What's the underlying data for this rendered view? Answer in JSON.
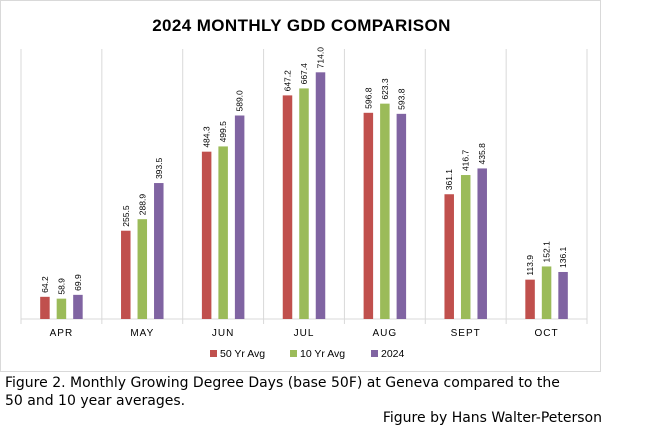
{
  "chart_data": {
    "type": "bar",
    "title": "2024 MONTHLY GDD COMPARISON",
    "categories": [
      "APR",
      "MAY",
      "JUN",
      "JUL",
      "AUG",
      "SEPT",
      "OCT"
    ],
    "series": [
      {
        "name": "50 Yr Avg",
        "color": "#c0504d",
        "values": [
          64.2,
          255.5,
          484.3,
          647.2,
          596.8,
          361.1,
          113.9
        ]
      },
      {
        "name": "10 Yr Avg",
        "color": "#9bbb59",
        "values": [
          58.9,
          288.9,
          499.5,
          667.4,
          623.3,
          416.7,
          152.1
        ]
      },
      {
        "name": "2024",
        "color": "#8064a2",
        "values": [
          69.9,
          393.5,
          589.0,
          714.0,
          593.8,
          435.8,
          136.1
        ]
      }
    ],
    "ylim": [
      0,
      800
    ],
    "xlabel": "",
    "ylabel": "",
    "grid": false,
    "legend_position": "bottom",
    "label_format": 1
  },
  "caption": {
    "line1": "Figure 2.  Monthly Growing Degree Days (base 50F) at Geneva compared to the",
    "line2": "50 and 10 year averages.",
    "credit": "Figure by Hans Walter-Peterson"
  }
}
